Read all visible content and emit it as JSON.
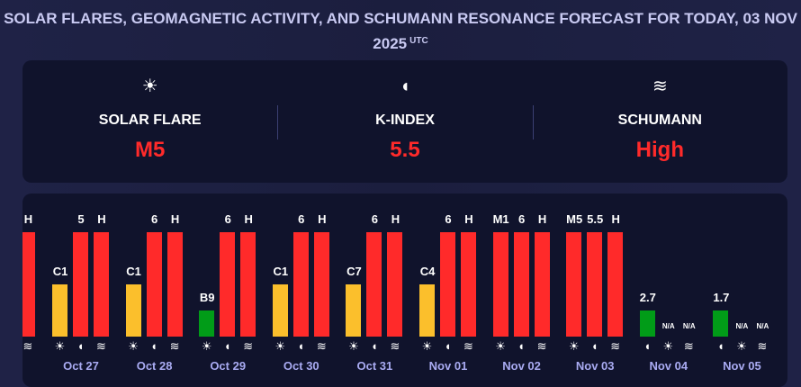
{
  "header": {
    "title": "SOLAR FLARES, GEOMAGNETIC ACTIVITY, AND SCHUMANN RESONANCE FORECAST FOR TODAY, 03 NOV 2025",
    "utc": "UTC"
  },
  "summary": [
    {
      "icon": "sun-icon",
      "glyph": "☀",
      "label": "SOLAR FLARE",
      "value": "M5"
    },
    {
      "icon": "magnet-icon",
      "glyph": "◖",
      "label": "K-INDEX",
      "value": "5.5"
    },
    {
      "icon": "waves-icon",
      "glyph": "≋",
      "label": "SCHUMANN",
      "value": "High"
    }
  ],
  "colors": {
    "high": "#ff2a2a",
    "medium": "#fbbf2c",
    "low": "#019c18",
    "na": "#10132c"
  },
  "chart_data": {
    "type": "bar",
    "days": [
      {
        "date": "",
        "bars": [
          {
            "kind": "schumann",
            "label": "H",
            "level": 1,
            "status": "high"
          }
        ]
      },
      {
        "date": "Oct 27",
        "bars": [
          {
            "kind": "solar",
            "label": "C1",
            "level": 0.5,
            "status": "medium"
          },
          {
            "kind": "kp",
            "label": "5",
            "level": 1,
            "status": "high"
          },
          {
            "kind": "schumann",
            "label": "H",
            "level": 1,
            "status": "high"
          }
        ]
      },
      {
        "date": "Oct 28",
        "bars": [
          {
            "kind": "solar",
            "label": "C1",
            "level": 0.5,
            "status": "medium"
          },
          {
            "kind": "kp",
            "label": "6",
            "level": 1,
            "status": "high"
          },
          {
            "kind": "schumann",
            "label": "H",
            "level": 1,
            "status": "high"
          }
        ]
      },
      {
        "date": "Oct 29",
        "bars": [
          {
            "kind": "solar",
            "label": "B9",
            "level": 0.25,
            "status": "low"
          },
          {
            "kind": "kp",
            "label": "6",
            "level": 1,
            "status": "high"
          },
          {
            "kind": "schumann",
            "label": "H",
            "level": 1,
            "status": "high"
          }
        ]
      },
      {
        "date": "Oct 30",
        "bars": [
          {
            "kind": "solar",
            "label": "C1",
            "level": 0.5,
            "status": "medium"
          },
          {
            "kind": "kp",
            "label": "6",
            "level": 1,
            "status": "high"
          },
          {
            "kind": "schumann",
            "label": "H",
            "level": 1,
            "status": "high"
          }
        ]
      },
      {
        "date": "Oct 31",
        "bars": [
          {
            "kind": "solar",
            "label": "C7",
            "level": 0.5,
            "status": "medium"
          },
          {
            "kind": "kp",
            "label": "6",
            "level": 1,
            "status": "high"
          },
          {
            "kind": "schumann",
            "label": "H",
            "level": 1,
            "status": "high"
          }
        ]
      },
      {
        "date": "Nov 01",
        "bars": [
          {
            "kind": "solar",
            "label": "C4",
            "level": 0.5,
            "status": "medium"
          },
          {
            "kind": "kp",
            "label": "6",
            "level": 1,
            "status": "high"
          },
          {
            "kind": "schumann",
            "label": "H",
            "level": 1,
            "status": "high"
          }
        ]
      },
      {
        "date": "Nov 02",
        "bars": [
          {
            "kind": "solar",
            "label": "M1",
            "level": 1,
            "status": "high"
          },
          {
            "kind": "kp",
            "label": "6",
            "level": 1,
            "status": "high"
          },
          {
            "kind": "schumann",
            "label": "H",
            "level": 1,
            "status": "high"
          }
        ]
      },
      {
        "date": "Nov 03",
        "bars": [
          {
            "kind": "solar",
            "label": "M5",
            "level": 1,
            "status": "high"
          },
          {
            "kind": "kp",
            "label": "5.5",
            "level": 1,
            "status": "high"
          },
          {
            "kind": "schumann",
            "label": "H",
            "level": 1,
            "status": "high"
          }
        ]
      },
      {
        "date": "Nov 04",
        "bars": [
          {
            "kind": "kp",
            "label": "2.7",
            "level": 0.25,
            "status": "low"
          },
          {
            "kind": "solar",
            "label": "N/A",
            "level": 0,
            "status": "na"
          },
          {
            "kind": "schumann",
            "label": "N/A",
            "level": 0,
            "status": "na"
          }
        ]
      },
      {
        "date": "Nov 05",
        "bars": [
          {
            "kind": "kp",
            "label": "1.7",
            "level": 0.25,
            "status": "low"
          },
          {
            "kind": "solar",
            "label": "N/A",
            "level": 0,
            "status": "na"
          },
          {
            "kind": "schumann",
            "label": "N/A",
            "level": 0,
            "status": "na"
          }
        ]
      }
    ]
  }
}
